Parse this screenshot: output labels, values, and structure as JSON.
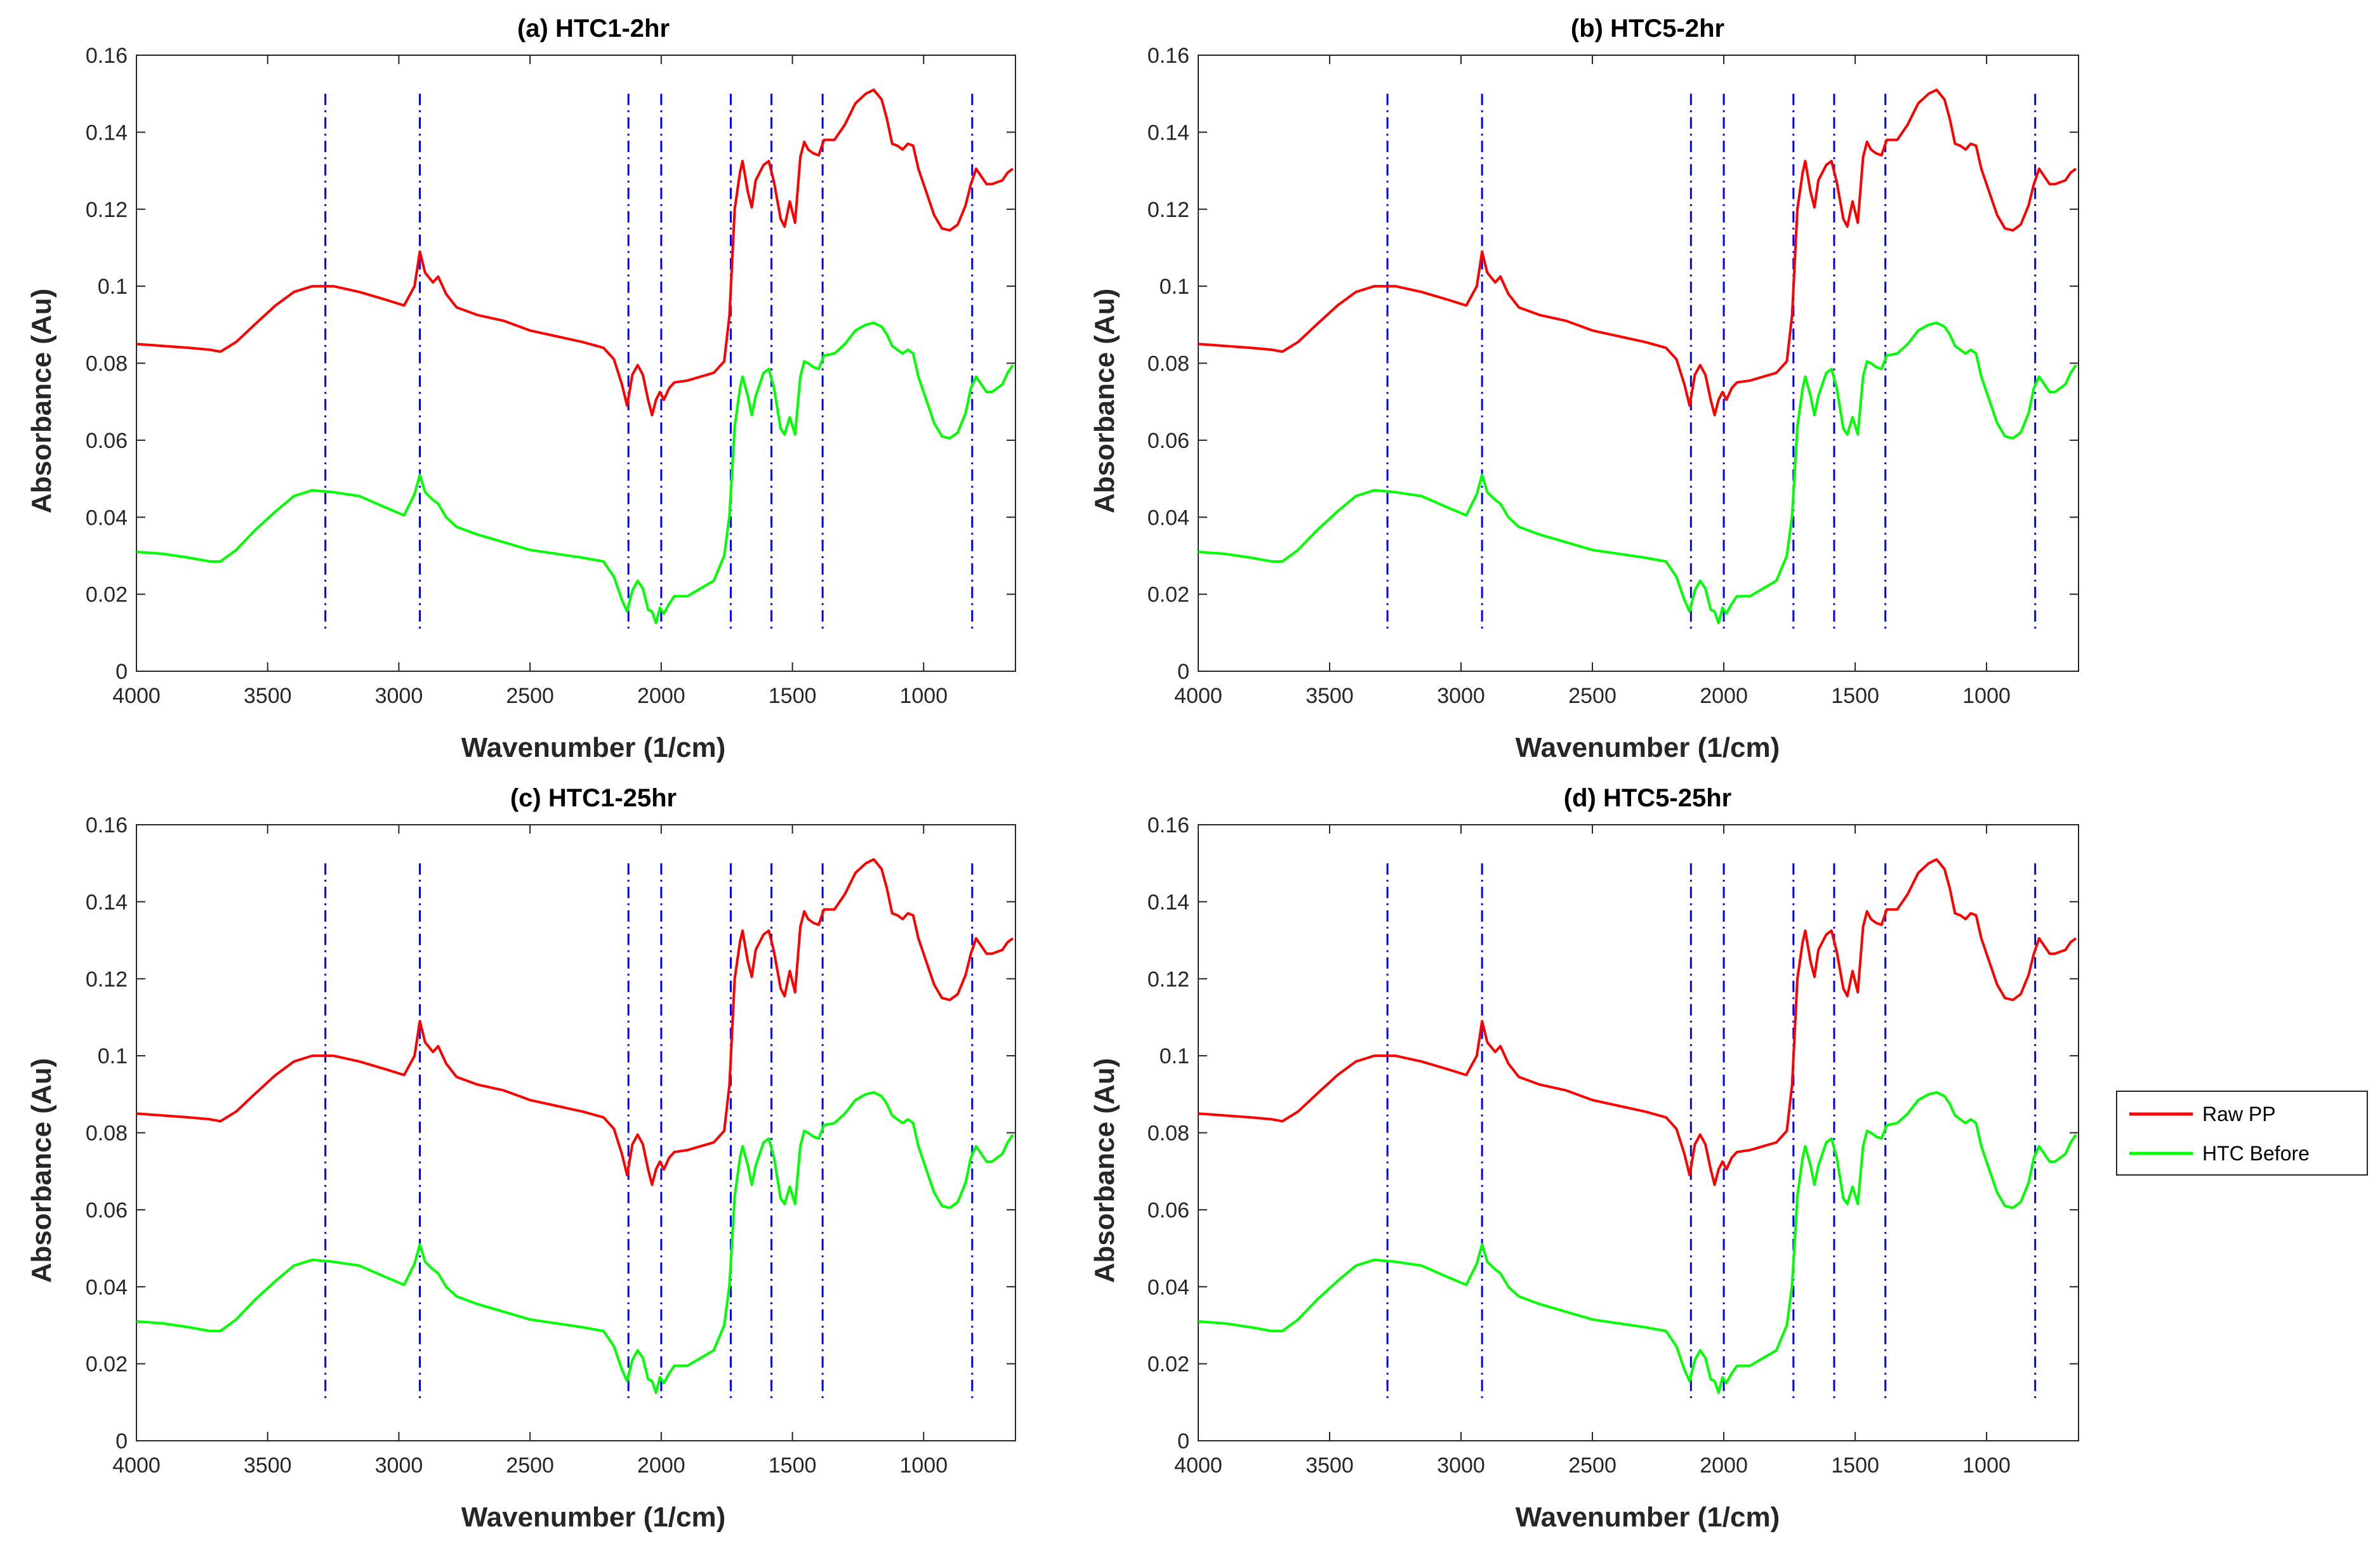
{
  "chart_data": {
    "type": "line",
    "xlabel": "Wavenumber (1/cm)",
    "ylabel": "Absorbance (Au)",
    "xlim": [
      4000,
      650
    ],
    "ylim": [
      0,
      0.16
    ],
    "x_reversed": true,
    "grid": false,
    "xticks": [
      4000,
      3500,
      3000,
      2500,
      2000,
      1500,
      1000
    ],
    "xtick_labels": [
      "4000",
      "3500",
      "3000",
      "2500",
      "2000",
      "1500",
      "1000"
    ],
    "yticks": [
      0,
      0.02,
      0.04,
      0.06,
      0.08,
      0.1,
      0.12,
      0.14,
      0.16
    ],
    "ytick_labels": [
      "0",
      "0.02",
      "0.04",
      "0.06",
      "0.08",
      "0.1",
      "0.12",
      "0.14",
      "0.16"
    ],
    "legend": {
      "placement": "right",
      "entries": [
        {
          "name": "Raw PP",
          "color": "#ff0000"
        },
        {
          "name": "HTC Before",
          "color": "#00ff00"
        }
      ]
    },
    "series": [
      {
        "name": "Raw PP",
        "color": "#ff0000",
        "points": [
          [
            4000,
            0.085
          ],
          [
            3900,
            0.0845
          ],
          [
            3800,
            0.084
          ],
          [
            3720,
            0.0835
          ],
          [
            3680,
            0.083
          ],
          [
            3620,
            0.0855
          ],
          [
            3550,
            0.09
          ],
          [
            3470,
            0.095
          ],
          [
            3400,
            0.0985
          ],
          [
            3330,
            0.1
          ],
          [
            3250,
            0.1
          ],
          [
            3150,
            0.0985
          ],
          [
            3050,
            0.0965
          ],
          [
            2980,
            0.095
          ],
          [
            2940,
            0.1
          ],
          [
            2920,
            0.109
          ],
          [
            2900,
            0.1035
          ],
          [
            2870,
            0.101
          ],
          [
            2850,
            0.1025
          ],
          [
            2820,
            0.098
          ],
          [
            2780,
            0.0945
          ],
          [
            2700,
            0.0925
          ],
          [
            2600,
            0.091
          ],
          [
            2500,
            0.0885
          ],
          [
            2400,
            0.087
          ],
          [
            2300,
            0.0855
          ],
          [
            2220,
            0.084
          ],
          [
            2180,
            0.081
          ],
          [
            2150,
            0.0745
          ],
          [
            2130,
            0.069
          ],
          [
            2110,
            0.077
          ],
          [
            2090,
            0.0795
          ],
          [
            2070,
            0.077
          ],
          [
            2050,
            0.0705
          ],
          [
            2035,
            0.0665
          ],
          [
            2020,
            0.0705
          ],
          [
            2005,
            0.0725
          ],
          [
            1990,
            0.0705
          ],
          [
            1970,
            0.0735
          ],
          [
            1950,
            0.075
          ],
          [
            1900,
            0.0755
          ],
          [
            1850,
            0.0765
          ],
          [
            1800,
            0.0775
          ],
          [
            1760,
            0.0805
          ],
          [
            1740,
            0.0925
          ],
          [
            1720,
            0.12
          ],
          [
            1700,
            0.1295
          ],
          [
            1690,
            0.1325
          ],
          [
            1670,
            0.1245
          ],
          [
            1655,
            0.1205
          ],
          [
            1640,
            0.1275
          ],
          [
            1610,
            0.1315
          ],
          [
            1590,
            0.1325
          ],
          [
            1570,
            0.127
          ],
          [
            1545,
            0.1175
          ],
          [
            1530,
            0.1155
          ],
          [
            1510,
            0.122
          ],
          [
            1490,
            0.1165
          ],
          [
            1470,
            0.1335
          ],
          [
            1455,
            0.1375
          ],
          [
            1440,
            0.1355
          ],
          [
            1420,
            0.1345
          ],
          [
            1400,
            0.134
          ],
          [
            1380,
            0.138
          ],
          [
            1340,
            0.138
          ],
          [
            1300,
            0.142
          ],
          [
            1260,
            0.1475
          ],
          [
            1220,
            0.15
          ],
          [
            1190,
            0.151
          ],
          [
            1160,
            0.1485
          ],
          [
            1140,
            0.1435
          ],
          [
            1120,
            0.137
          ],
          [
            1100,
            0.1365
          ],
          [
            1080,
            0.1355
          ],
          [
            1060,
            0.137
          ],
          [
            1040,
            0.1365
          ],
          [
            1020,
            0.1305
          ],
          [
            990,
            0.1245
          ],
          [
            960,
            0.1185
          ],
          [
            930,
            0.115
          ],
          [
            900,
            0.1145
          ],
          [
            870,
            0.116
          ],
          [
            840,
            0.121
          ],
          [
            820,
            0.1265
          ],
          [
            800,
            0.1305
          ],
          [
            780,
            0.1285
          ],
          [
            760,
            0.1265
          ],
          [
            740,
            0.1265
          ],
          [
            700,
            0.1275
          ],
          [
            680,
            0.1295
          ],
          [
            660,
            0.1305
          ]
        ]
      },
      {
        "name": "HTC Before",
        "color": "#00ff00",
        "points": [
          [
            4000,
            0.031
          ],
          [
            3900,
            0.0305
          ],
          [
            3800,
            0.0295
          ],
          [
            3720,
            0.0285
          ],
          [
            3680,
            0.0285
          ],
          [
            3620,
            0.0315
          ],
          [
            3550,
            0.0365
          ],
          [
            3470,
            0.0415
          ],
          [
            3400,
            0.0455
          ],
          [
            3330,
            0.047
          ],
          [
            3250,
            0.0465
          ],
          [
            3150,
            0.0455
          ],
          [
            3050,
            0.0425
          ],
          [
            2980,
            0.0405
          ],
          [
            2940,
            0.046
          ],
          [
            2920,
            0.051
          ],
          [
            2900,
            0.0465
          ],
          [
            2870,
            0.0445
          ],
          [
            2850,
            0.0435
          ],
          [
            2820,
            0.04
          ],
          [
            2780,
            0.0375
          ],
          [
            2700,
            0.0355
          ],
          [
            2600,
            0.0335
          ],
          [
            2500,
            0.0315
          ],
          [
            2400,
            0.0305
          ],
          [
            2300,
            0.0295
          ],
          [
            2220,
            0.0285
          ],
          [
            2180,
            0.0245
          ],
          [
            2150,
            0.0185
          ],
          [
            2130,
            0.0155
          ],
          [
            2110,
            0.021
          ],
          [
            2090,
            0.0235
          ],
          [
            2070,
            0.0215
          ],
          [
            2050,
            0.016
          ],
          [
            2035,
            0.0155
          ],
          [
            2020,
            0.0125
          ],
          [
            2005,
            0.0165
          ],
          [
            1990,
            0.015
          ],
          [
            1970,
            0.0175
          ],
          [
            1950,
            0.0195
          ],
          [
            1900,
            0.0195
          ],
          [
            1850,
            0.0215
          ],
          [
            1800,
            0.0235
          ],
          [
            1760,
            0.03
          ],
          [
            1740,
            0.0405
          ],
          [
            1720,
            0.0635
          ],
          [
            1700,
            0.0735
          ],
          [
            1690,
            0.0765
          ],
          [
            1670,
            0.0715
          ],
          [
            1655,
            0.0665
          ],
          [
            1640,
            0.0715
          ],
          [
            1610,
            0.0775
          ],
          [
            1590,
            0.0785
          ],
          [
            1570,
            0.0735
          ],
          [
            1545,
            0.063
          ],
          [
            1530,
            0.0615
          ],
          [
            1510,
            0.066
          ],
          [
            1490,
            0.0615
          ],
          [
            1470,
            0.0765
          ],
          [
            1455,
            0.0805
          ],
          [
            1440,
            0.08
          ],
          [
            1420,
            0.079
          ],
          [
            1400,
            0.0785
          ],
          [
            1380,
            0.082
          ],
          [
            1340,
            0.0825
          ],
          [
            1300,
            0.085
          ],
          [
            1260,
            0.0885
          ],
          [
            1220,
            0.09
          ],
          [
            1190,
            0.0905
          ],
          [
            1160,
            0.0895
          ],
          [
            1140,
            0.0875
          ],
          [
            1120,
            0.0845
          ],
          [
            1100,
            0.0835
          ],
          [
            1080,
            0.0825
          ],
          [
            1060,
            0.0835
          ],
          [
            1040,
            0.0825
          ],
          [
            1020,
            0.0765
          ],
          [
            990,
            0.0705
          ],
          [
            960,
            0.0645
          ],
          [
            930,
            0.061
          ],
          [
            900,
            0.0605
          ],
          [
            870,
            0.062
          ],
          [
            840,
            0.067
          ],
          [
            820,
            0.0735
          ],
          [
            800,
            0.0765
          ],
          [
            780,
            0.0745
          ],
          [
            760,
            0.0725
          ],
          [
            740,
            0.0725
          ],
          [
            700,
            0.0745
          ],
          [
            680,
            0.0775
          ],
          [
            660,
            0.0795
          ]
        ]
      }
    ],
    "reference_lines": {
      "color": "#0000ff",
      "style": "dash-dot",
      "x": [
        3280,
        2920,
        2125,
        2000,
        1735,
        1580,
        1385,
        815
      ],
      "y_range": [
        0.01,
        0.15
      ]
    },
    "panels": [
      {
        "title": "(a) HTC1-2hr"
      },
      {
        "title": "(b) HTC5-2hr"
      },
      {
        "title": "(c) HTC1-25hr"
      },
      {
        "title": "(d) HTC5-25hr"
      }
    ]
  }
}
